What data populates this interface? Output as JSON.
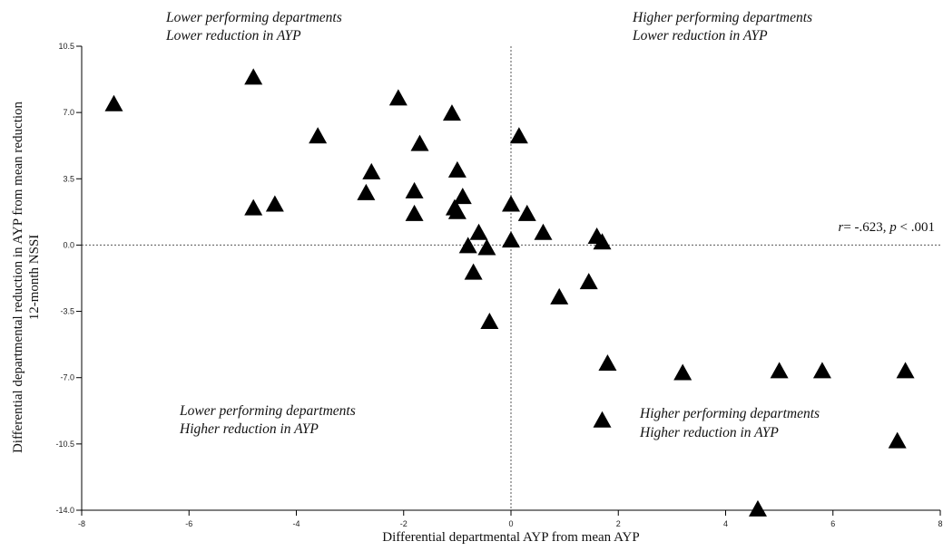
{
  "chart_data": {
    "type": "scatter",
    "xlabel": "Differential departmental AYP from mean AYP",
    "ylabel_line1": "Differential departmental reduction in AYP from mean reduction",
    "ylabel_line2": "12-month NSSI",
    "xlim": [
      -8,
      8
    ],
    "ylim": [
      -14.0,
      10.5
    ],
    "x_ticks": [
      -8,
      -6,
      -4,
      -2,
      0,
      2,
      4,
      6,
      8
    ],
    "x_tick_labels": [
      "-8",
      "-6",
      "-4",
      "-2",
      "0",
      "2",
      "4",
      "6",
      "8"
    ],
    "y_ticks": [
      10.5,
      7.0,
      3.5,
      0.0,
      -3.5,
      -7.0,
      -10.5,
      -14.0
    ],
    "y_tick_labels": [
      "10.5",
      "7.0",
      "3.5",
      "0.0",
      "-3.5",
      "-7.0",
      "-10.5",
      "-14.0"
    ],
    "reference_lines": {
      "x": 0,
      "y": 0,
      "style": "dotted"
    },
    "marker": "triangle",
    "annotation": {
      "r_sym": "r",
      "r_text": "= -.623, ",
      "p_sym": "p",
      "p_text": " < .001"
    },
    "quadrant_labels": {
      "top_left": [
        "Lower performing departments",
        "Lower reduction in AYP"
      ],
      "top_right": [
        "Higher performing departments",
        "Lower reduction in AYP"
      ],
      "bottom_left": [
        "Lower performing departments",
        "Higher reduction in AYP"
      ],
      "bottom_right": [
        "Higher performing departments",
        "Higher reduction in AYP"
      ]
    },
    "points": [
      [
        -7.4,
        7.5
      ],
      [
        -4.8,
        8.9
      ],
      [
        -4.8,
        2.0
      ],
      [
        -4.4,
        2.2
      ],
      [
        -3.6,
        5.8
      ],
      [
        -2.7,
        2.8
      ],
      [
        -2.6,
        3.9
      ],
      [
        -2.1,
        7.8
      ],
      [
        -1.8,
        2.9
      ],
      [
        -1.8,
        1.7
      ],
      [
        -1.7,
        5.4
      ],
      [
        -1.1,
        7.0
      ],
      [
        -1.05,
        2.0
      ],
      [
        -1.0,
        4.0
      ],
      [
        -1.0,
        1.8
      ],
      [
        -0.9,
        2.6
      ],
      [
        -0.8,
        0.0
      ],
      [
        -0.7,
        -1.4
      ],
      [
        -0.6,
        0.7
      ],
      [
        -0.45,
        -0.1
      ],
      [
        -0.4,
        -4.0
      ],
      [
        0.0,
        2.2
      ],
      [
        0.0,
        0.3
      ],
      [
        0.15,
        5.8
      ],
      [
        0.3,
        1.7
      ],
      [
        0.6,
        0.7
      ],
      [
        0.9,
        -2.7
      ],
      [
        1.45,
        -1.9
      ],
      [
        1.6,
        0.5
      ],
      [
        1.7,
        0.2
      ],
      [
        1.7,
        -9.2
      ],
      [
        1.8,
        -6.2
      ],
      [
        3.2,
        -6.7
      ],
      [
        4.6,
        -13.9
      ],
      [
        5.0,
        -6.6
      ],
      [
        5.8,
        -6.6
      ],
      [
        7.2,
        -10.3
      ],
      [
        7.35,
        -6.6
      ]
    ]
  }
}
